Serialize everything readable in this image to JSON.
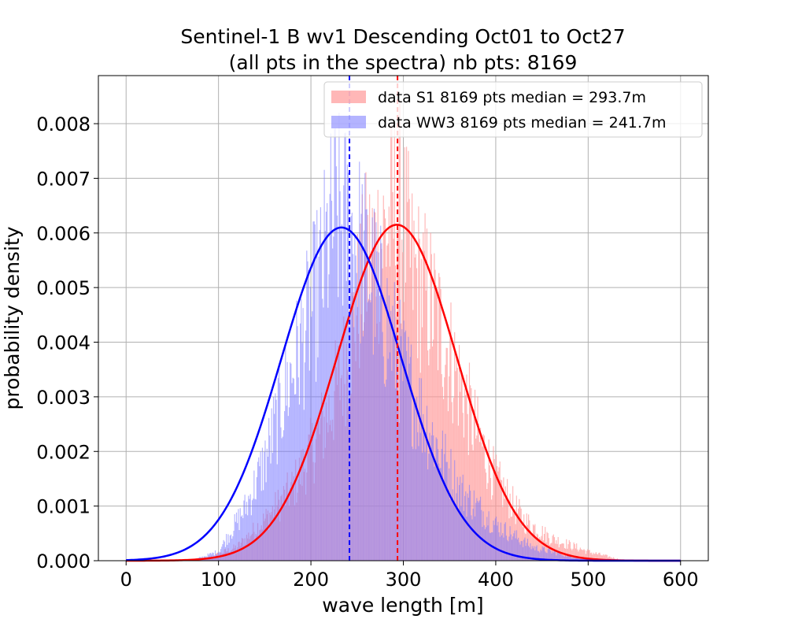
{
  "chart_data": {
    "type": "bar",
    "title_line1": "Sentinel-1 B wv1 Descending Oct01 to Oct27",
    "title_line2": "(all pts in the spectra) nb pts: 8169",
    "xlabel": "wave length [m]",
    "ylabel": "probability density",
    "xlim": [
      -30,
      630
    ],
    "ylim": [
      0,
      0.00888
    ],
    "xticks": [
      0,
      100,
      200,
      300,
      400,
      500,
      600
    ],
    "xtick_labels": [
      "0",
      "100",
      "200",
      "300",
      "400",
      "500",
      "600"
    ],
    "yticks": [
      0.0,
      0.001,
      0.002,
      0.003,
      0.004,
      0.005,
      0.006,
      0.007,
      0.008
    ],
    "ytick_labels": [
      "0.000",
      "0.001",
      "0.002",
      "0.003",
      "0.004",
      "0.005",
      "0.006",
      "0.007",
      "0.008"
    ],
    "grid": true,
    "legend_position": "top-right",
    "bin_width": 1,
    "series": [
      {
        "name": "data S1 8169 pts median = 293.7m",
        "kind": "histogram",
        "color": "#ff9999",
        "alpha": 0.7,
        "median": 293.7,
        "median_line_color": "#ff0000",
        "density_estimate": {
          "mean": 293,
          "sd": 64.8,
          "peak": 0.00615
        },
        "histogram_envelope": [
          [
            80,
            0.0
          ],
          [
            120,
            0.0003
          ],
          [
            150,
            0.0009
          ],
          [
            180,
            0.0016
          ],
          [
            200,
            0.0024
          ],
          [
            220,
            0.0033
          ],
          [
            240,
            0.0046
          ],
          [
            260,
            0.0066
          ],
          [
            280,
            0.0072
          ],
          [
            295,
            0.0079
          ],
          [
            310,
            0.0064
          ],
          [
            330,
            0.0057
          ],
          [
            350,
            0.0046
          ],
          [
            380,
            0.0028
          ],
          [
            400,
            0.0018
          ],
          [
            430,
            0.0009
          ],
          [
            460,
            0.0005
          ],
          [
            500,
            0.0002
          ],
          [
            540,
            0.0
          ]
        ]
      },
      {
        "name": "data WW3 8169 pts median = 241.7m",
        "kind": "histogram",
        "color": "#7777ff",
        "alpha": 0.55,
        "median": 241.7,
        "median_line_color": "#0000ff",
        "density_estimate": {
          "mean": 233,
          "sd": 65,
          "peak": 0.0061
        },
        "histogram_envelope": [
          [
            70,
            0.0
          ],
          [
            100,
            0.0002
          ],
          [
            130,
            0.0012
          ],
          [
            150,
            0.0022
          ],
          [
            170,
            0.0036
          ],
          [
            190,
            0.0048
          ],
          [
            210,
            0.0062
          ],
          [
            225,
            0.0076
          ],
          [
            240,
            0.0074
          ],
          [
            260,
            0.0066
          ],
          [
            280,
            0.0054
          ],
          [
            300,
            0.0042
          ],
          [
            330,
            0.0028
          ],
          [
            360,
            0.0016
          ],
          [
            400,
            0.0008
          ],
          [
            440,
            0.0003
          ],
          [
            480,
            0.0001
          ],
          [
            520,
            0.0
          ]
        ]
      }
    ]
  }
}
